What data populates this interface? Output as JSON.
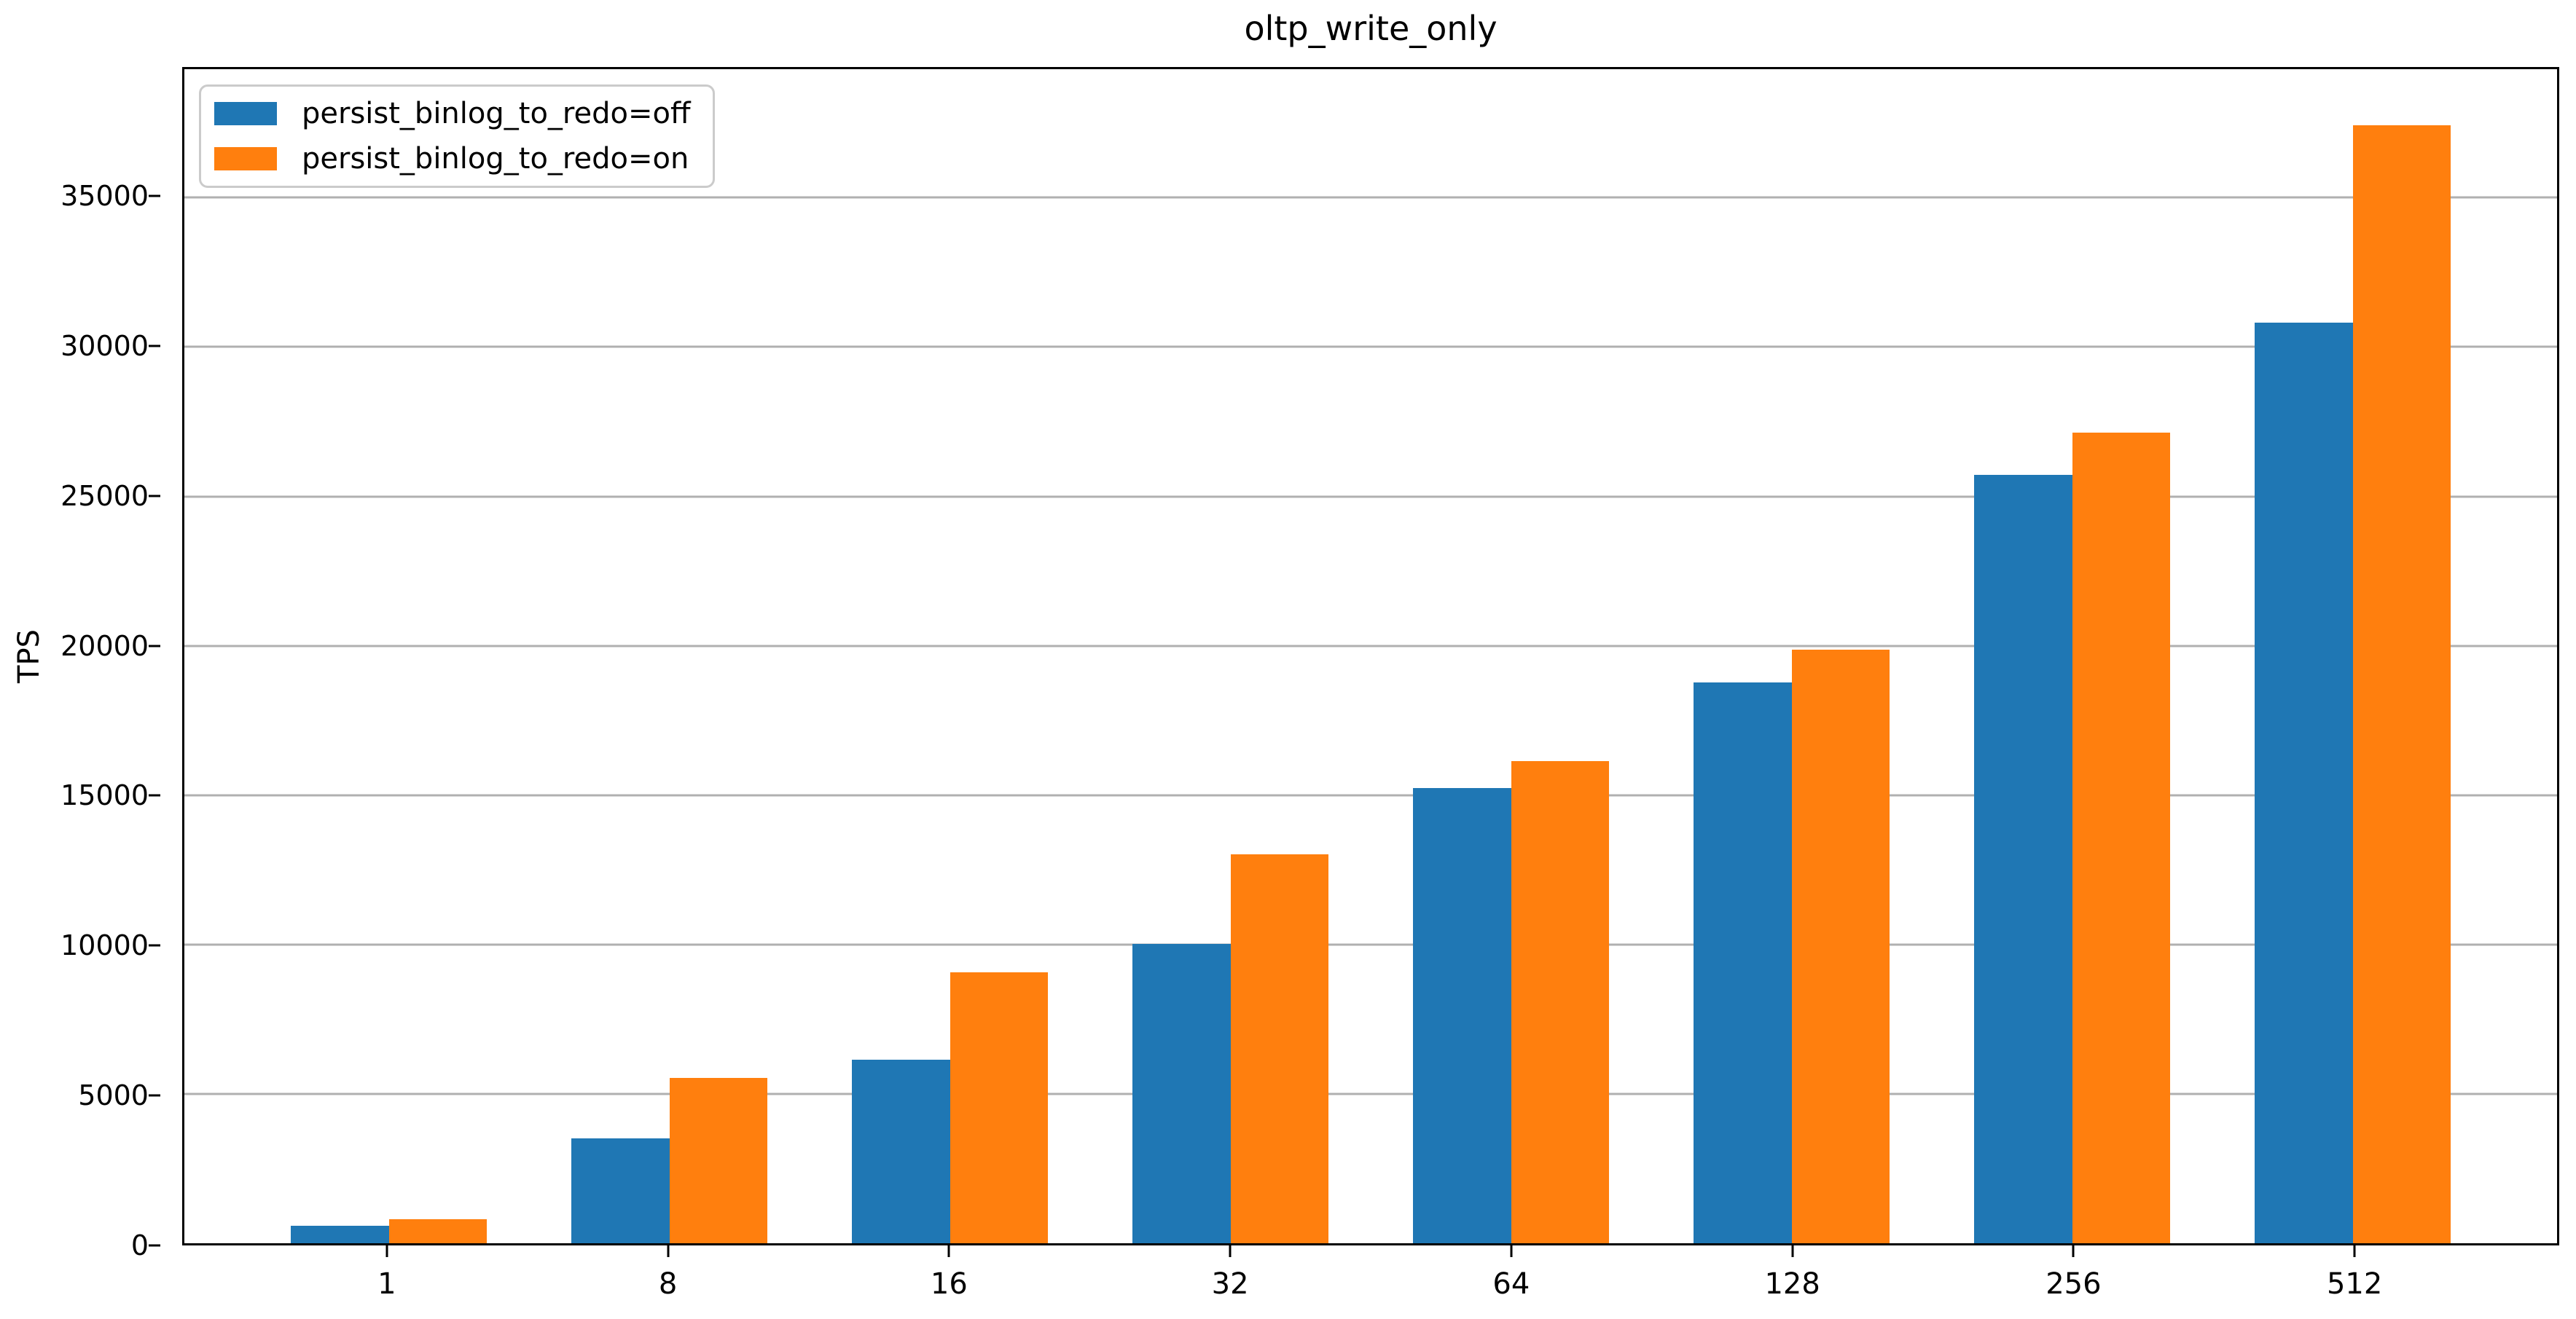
{
  "chart_data": {
    "type": "bar",
    "title": "oltp_write_only",
    "xlabel": "",
    "ylabel": "TPS",
    "categories": [
      "1",
      "8",
      "16",
      "32",
      "64",
      "128",
      "256",
      "512"
    ],
    "series": [
      {
        "name": "persist_binlog_to_redo=off",
        "color": "#1f77b4",
        "values": [
          580,
          3500,
          6140,
          10020,
          15240,
          18770,
          25720,
          30820
        ]
      },
      {
        "name": "persist_binlog_to_redo=on",
        "color": "#ff7f0e",
        "values": [
          800,
          5530,
          9060,
          13020,
          16140,
          19860,
          27130,
          37420
        ]
      }
    ],
    "y_ticks": [
      0,
      5000,
      10000,
      15000,
      20000,
      25000,
      30000,
      35000
    ],
    "ylim": [
      0,
      39300
    ],
    "grid": "horizontal-only",
    "grid_color": "#b0b0b0",
    "legend_position": "upper-left",
    "bar_pair_width_fraction": 0.7
  }
}
